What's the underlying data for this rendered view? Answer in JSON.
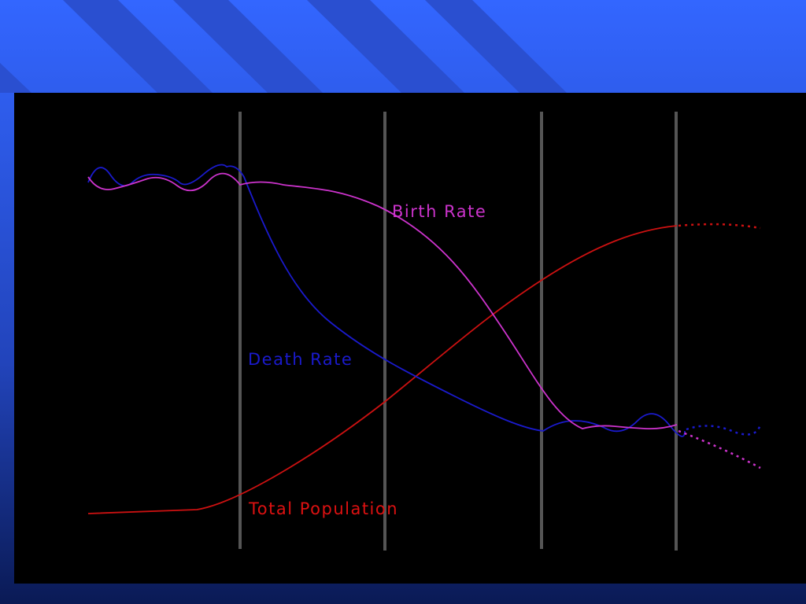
{
  "diagram": {
    "labels": {
      "birth_rate": "Birth Rate",
      "death_rate": "Death Rate",
      "total_population": "Total Population"
    }
  }
}
